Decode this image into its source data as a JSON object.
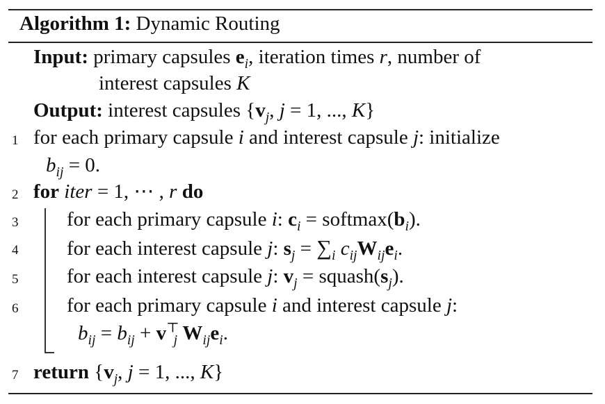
{
  "algorithm": {
    "label": "Algorithm 1:",
    "name": "Dynamic Routing"
  },
  "input": {
    "keyword": "Input:",
    "line1": "primary capsules e_i, iteration times r, number of",
    "line2": "interest capsules K"
  },
  "output": {
    "keyword": "Output:",
    "text": "interest capsules {v_j, j = 1, ..., K}"
  },
  "steps": [
    {
      "num": "1",
      "text": "for each primary capsule i and interest capsule j: initialize b_ij = 0."
    },
    {
      "num": "2",
      "text": "for iter = 1, ⋯ , r do"
    },
    {
      "num": "3",
      "text": "for each primary capsule i: c_i = softmax(b_i)."
    },
    {
      "num": "4",
      "text": "for each interest capsule j: s_j = ∑_i c_ij W_ij e_i."
    },
    {
      "num": "5",
      "text": "for each interest capsule j: v_j = squash(s_j)."
    },
    {
      "num": "6",
      "text": "for each primary capsule i and interest capsule j: b_ij = b_ij + v_j^⊤ W_ij e_i."
    },
    {
      "num": "7",
      "text": "return {v_j, j = 1, ..., K}"
    }
  ]
}
